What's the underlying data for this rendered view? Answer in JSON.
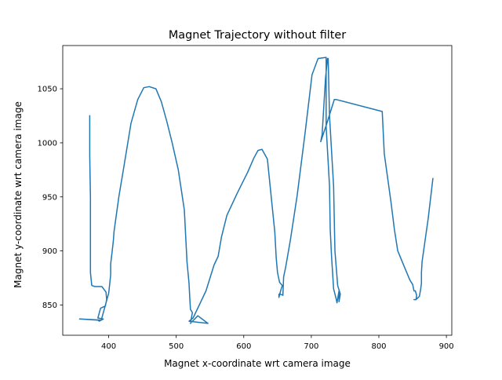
{
  "chart_data": {
    "type": "line",
    "title": "Magnet Trajectory without filter",
    "xlabel": "Magnet x-coordinate wrt camera image",
    "ylabel": "Magnet y-coordinate wrt camera image",
    "xlim": [
      332,
      908
    ],
    "ylim": [
      822,
      1090
    ],
    "xticks": [
      400,
      500,
      600,
      700,
      800,
      900
    ],
    "yticks": [
      850,
      900,
      950,
      1000,
      1050
    ],
    "grid": false,
    "series": [
      {
        "color": "#1f77b4",
        "x": [
          372,
          372,
          373,
          373,
          373,
          373,
          375,
          380,
          390,
          396,
          397,
          395,
          388,
          384,
          392,
          386,
          384,
          357,
          389,
          400,
          403,
          403,
          405,
          407,
          408,
          415,
          423,
          433,
          443,
          452,
          460,
          470,
          478,
          486,
          494,
          503,
          512,
          516,
          519,
          520,
          521,
          524,
          521,
          532,
          547,
          519,
          525,
          544,
          556,
          562,
          567,
          575,
          590,
          606,
          615,
          621,
          627,
          635,
          646,
          648,
          650,
          653,
          657,
          655,
          653,
          654,
          652,
          652,
          654,
          658,
          658,
          659,
          662,
          669,
          679,
          691,
          701,
          710,
          722,
          722,
          727,
          728,
          730,
          733,
          737,
          738,
          741,
          741,
          743,
          739,
          735,
          733,
          727,
          725,
          724,
          724,
          721,
          716,
          714,
          723,
          730,
          734,
          737,
          805,
          808,
          818,
          823,
          828,
          838,
          846,
          850,
          852,
          854,
          856,
          855,
          852,
          855,
          860,
          862,
          863,
          863,
          864,
          873,
          880
        ],
        "y": [
          1025,
          988,
          950,
          920,
          900,
          880,
          868,
          867,
          867,
          862,
          855,
          849,
          847,
          838,
          837,
          835,
          836,
          837,
          836,
          861,
          878,
          888,
          899,
          910,
          918,
          950,
          980,
          1018,
          1040,
          1051,
          1052,
          1050,
          1038,
          1020,
          1000,
          975,
          938,
          890,
          870,
          857,
          846,
          843,
          833,
          840,
          833,
          835,
          838,
          863,
          887,
          895,
          913,
          933,
          953,
          973,
          986,
          993,
          994,
          985,
          917,
          894,
          880,
          871,
          868,
          864,
          859,
          862,
          857,
          860,
          860,
          859,
          860,
          876,
          885,
          910,
          951,
          1010,
          1063,
          1078,
          1079,
          1015,
          960,
          920,
          895,
          865,
          855,
          852,
          863,
          853,
          860,
          868,
          900,
          960,
          1025,
          1078,
          1078,
          1078,
          1060,
          1008,
          1001,
          1018,
          1032,
          1040,
          1040,
          1029,
          990,
          945,
          920,
          900,
          885,
          873,
          869,
          863,
          863,
          859,
          855,
          855,
          855,
          858,
          865,
          870,
          880,
          890,
          930,
          967
        ]
      }
    ]
  }
}
